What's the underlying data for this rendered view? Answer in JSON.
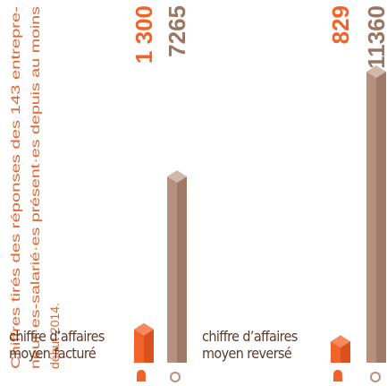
{
  "chart_data": {
    "type": "bar",
    "note": [
      "Chiffres tirés des réponses des 143 entrepre-",
      "neur·es-salarié·es présent·es depuis au moins",
      "début 2014."
    ],
    "categories": [
      "chiffre d’affaires moyen facturé",
      "chiffre d’affaires moyen reversé"
    ],
    "series": [
      {
        "color": "#f0642a",
        "values": [
          1300,
          829
        ],
        "value_labels": [
          "1 300",
          "829"
        ]
      },
      {
        "color": "#b7917f",
        "values": [
          7265,
          11360
        ]
      }
    ]
  }
}
